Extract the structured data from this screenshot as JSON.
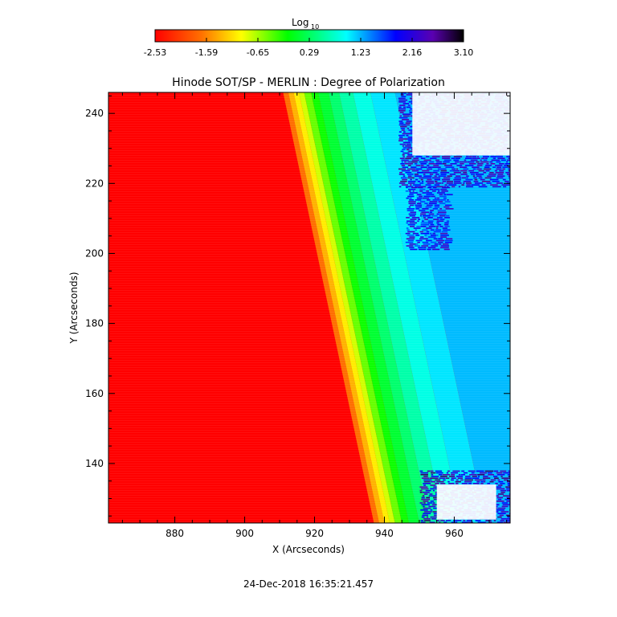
{
  "chart_data": {
    "type": "heatmap",
    "title": "Hinode SOT/SP - MERLIN : Degree of Polarization",
    "xlabel": "X (Arcseconds)",
    "ylabel": "Y (Arcseconds)",
    "xlim": [
      861,
      976
    ],
    "ylim": [
      123,
      246
    ],
    "x_ticks": [
      880,
      900,
      920,
      940,
      960
    ],
    "y_ticks": [
      140,
      160,
      180,
      200,
      220,
      240
    ],
    "colorbar": {
      "label": "Log",
      "label_subscript": "10",
      "range": [
        -2.53,
        3.1
      ],
      "tick_labels": [
        "-2.53",
        "-1.59",
        "-0.65",
        "0.29",
        "1.23",
        "2.16",
        "3.10"
      ],
      "colors": [
        "#ff0000",
        "#ff8000",
        "#ffff00",
        "#00ff00",
        "#00ffff",
        "#0000ff",
        "#5a00b0",
        "#000000"
      ]
    },
    "limb": {
      "description_free": true,
      "x_at_top": 911,
      "x_at_bottom": 937,
      "y_top": 246,
      "y_bottom": 123
    },
    "regions": [
      {
        "value": -2.53,
        "x_start": 861,
        "x_end": "limb"
      },
      {
        "value": -1.2,
        "width_arcsec": 4
      },
      {
        "value": -0.2,
        "width_arcsec": 8
      },
      {
        "value": 0.6,
        "width_arcsec": 12
      },
      {
        "value": 1.2,
        "width_arcsec": 40
      }
    ],
    "noise_patches": [
      {
        "x": [
          944,
          976
        ],
        "y": [
          219,
          246
        ],
        "value": 2.2
      },
      {
        "x": [
          946,
          958
        ],
        "y": [
          201,
          219
        ],
        "value": 2.0
      },
      {
        "x": [
          950,
          976
        ],
        "y": [
          123,
          138
        ],
        "value": 2.3
      }
    ],
    "blank_patches": [
      {
        "x": [
          948,
          976
        ],
        "y": [
          228,
          246
        ]
      },
      {
        "x": [
          955,
          972
        ],
        "y": [
          124,
          134
        ]
      }
    ]
  },
  "timestamp": "24-Dec-2018 16:35:21.457"
}
